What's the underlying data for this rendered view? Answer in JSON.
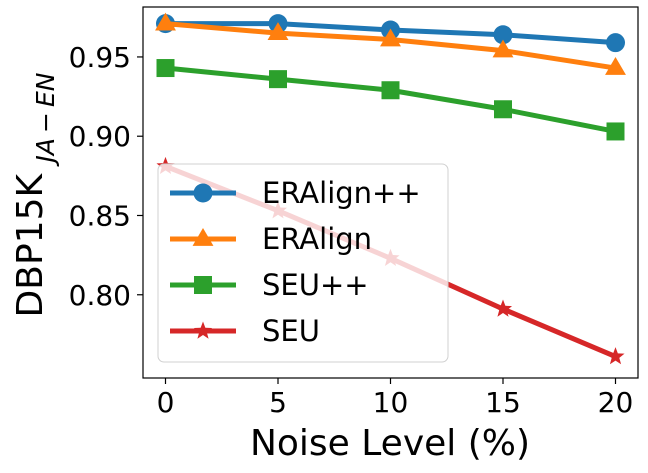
{
  "chart_data": {
    "type": "line",
    "x": [
      0,
      5,
      10,
      15,
      20
    ],
    "xlabel": "Noise Level (%)",
    "ylabel_main": "DBP15K",
    "ylabel_subscript": "JA − EN",
    "xlim": [
      -1,
      21
    ],
    "ylim": [
      0.7475,
      0.9815
    ],
    "xticks": [
      0,
      5,
      10,
      15,
      20
    ],
    "yticks": [
      0.8,
      0.85,
      0.9,
      0.95
    ],
    "ytick_labels": [
      "0.80",
      "0.85",
      "0.90",
      "0.95"
    ],
    "legend_position": "lower-left",
    "series": [
      {
        "name": "ERAlign++",
        "color": "#1f77b4",
        "marker": "circle",
        "values": [
          0.971,
          0.971,
          0.967,
          0.964,
          0.959
        ]
      },
      {
        "name": "ERAlign",
        "color": "#ff7f0e",
        "marker": "triangle",
        "values": [
          0.971,
          0.965,
          0.961,
          0.954,
          0.943
        ]
      },
      {
        "name": "SEU++",
        "color": "#2ca02c",
        "marker": "square",
        "values": [
          0.943,
          0.936,
          0.929,
          0.917,
          0.903
        ]
      },
      {
        "name": "SEU",
        "color": "#d62728",
        "marker": "star",
        "values": [
          0.881,
          0.853,
          0.823,
          0.791,
          0.761
        ]
      }
    ]
  }
}
